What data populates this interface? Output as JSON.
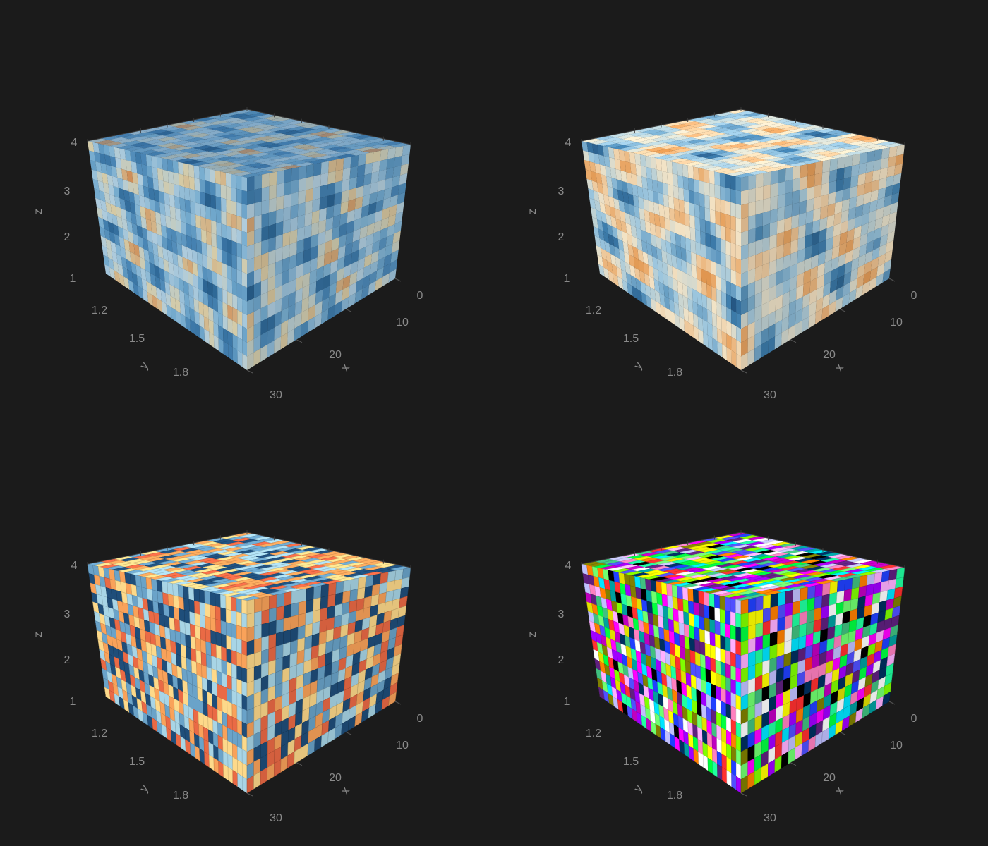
{
  "chart_data": [
    {
      "type": "heatmap",
      "render": "volume",
      "colormap": "blue-white-orange",
      "background": "#1b1b1b",
      "axes": {
        "x": {
          "label": "x",
          "ticks": [
            "0",
            "10",
            "20",
            "30"
          ],
          "range": [
            0,
            32
          ]
        },
        "y": {
          "label": "y",
          "ticks": [
            "1.2",
            "1.5",
            "1.8"
          ],
          "range": [
            1,
            2
          ]
        },
        "z": {
          "label": "z",
          "ticks": [
            "1",
            "2",
            "3",
            "4"
          ],
          "range": [
            1,
            4
          ]
        }
      },
      "colors": [
        "#1f4e7a",
        "#2e6a99",
        "#4f8fbf",
        "#8cc3e3",
        "#cfe8f3",
        "#fde7b0",
        "#f9b26b",
        "#f08a3c"
      ]
    },
    {
      "type": "heatmap",
      "render": "volume-opaque",
      "colormap": "blue-white-orange",
      "background": "#1b1b1b",
      "axes": {
        "x": {
          "label": "x",
          "ticks": [
            "0",
            "10",
            "20",
            "30"
          ],
          "range": [
            0,
            32
          ]
        },
        "y": {
          "label": "y",
          "ticks": [
            "1.2",
            "1.5",
            "1.8"
          ],
          "range": [
            1,
            2
          ]
        },
        "z": {
          "label": "z",
          "ticks": [
            "1",
            "2",
            "3",
            "4"
          ],
          "range": [
            1,
            4
          ]
        }
      },
      "colors": [
        "#1f4e7a",
        "#3f7fae",
        "#9cc6de",
        "#f2e3c6",
        "#e9a766",
        "#d9893f"
      ]
    },
    {
      "type": "heatmap",
      "render": "voxels",
      "colormap": "categorical-blue-orange",
      "background": "#1b1b1b",
      "axes": {
        "x": {
          "label": "x",
          "ticks": [
            "0",
            "10",
            "20",
            "30"
          ],
          "range": [
            0,
            32
          ]
        },
        "y": {
          "label": "y",
          "ticks": [
            "1.2",
            "1.5",
            "1.8"
          ],
          "range": [
            1,
            2
          ]
        },
        "z": {
          "label": "z",
          "ticks": [
            "1",
            "2",
            "3",
            "4"
          ],
          "range": [
            1,
            4
          ]
        }
      },
      "colors": [
        "#1f4e7a",
        "#6aa3c9",
        "#a8d5e6",
        "#fdd98a",
        "#f9a25a",
        "#ea6a45"
      ]
    },
    {
      "type": "heatmap",
      "render": "voxels",
      "colormap": "random-rgb",
      "background": "#1b1b1b",
      "axes": {
        "x": {
          "label": "x",
          "ticks": [
            "0",
            "10",
            "20",
            "30"
          ],
          "range": [
            0,
            32
          ]
        },
        "y": {
          "label": "y",
          "ticks": [
            "1.2",
            "1.5",
            "1.8"
          ],
          "range": [
            1,
            2
          ]
        },
        "z": {
          "label": "z",
          "ticks": [
            "1",
            "2",
            "3",
            "4"
          ],
          "range": [
            1,
            4
          ]
        }
      },
      "colors": []
    }
  ]
}
